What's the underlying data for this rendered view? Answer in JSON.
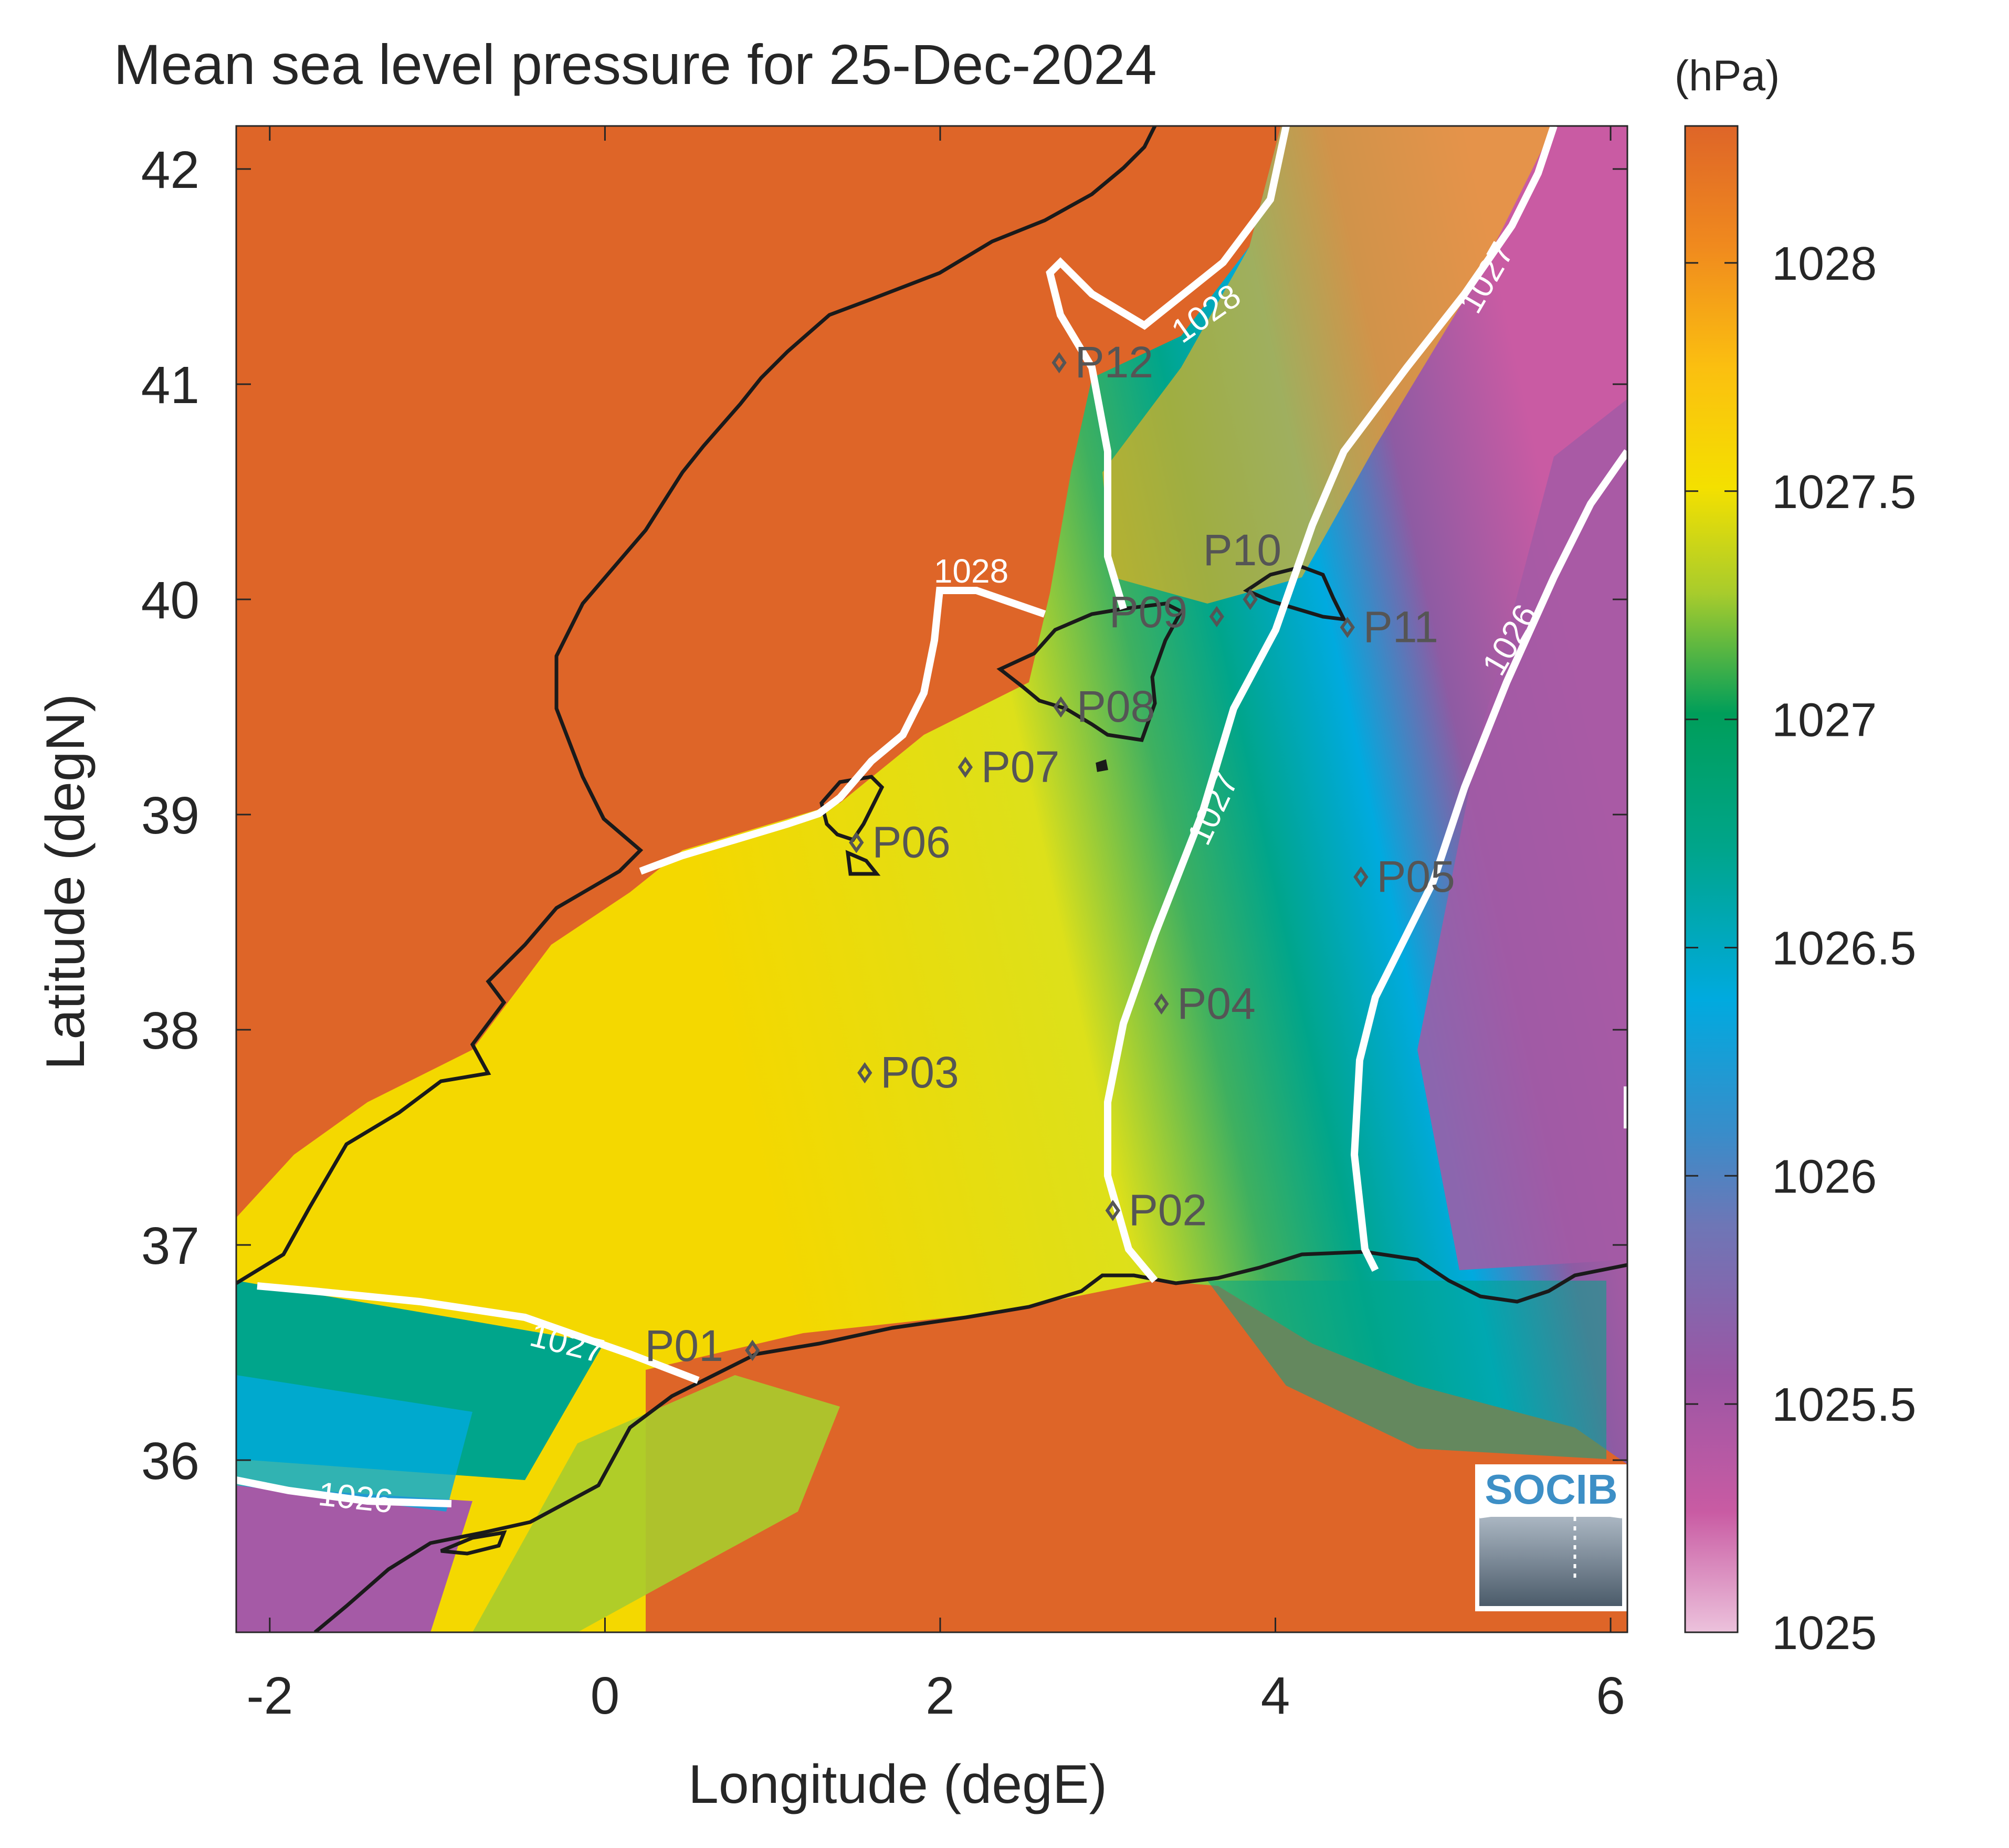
{
  "map": {
    "title": "Mean sea level pressure for 25-Dec-2024",
    "units_label": "(hPa)",
    "xlabel": "Longitude (degE)",
    "ylabel": "Latitude (degN)",
    "xlim": [
      -2.2,
      6.1
    ],
    "ylim": [
      35.2,
      42.2
    ],
    "x_ticks": [
      -2,
      0,
      2,
      4,
      6
    ],
    "x_tick_labels": [
      "-2",
      "0",
      "2",
      "4",
      "6"
    ],
    "y_ticks": [
      36,
      37,
      38,
      39,
      40,
      41,
      42
    ],
    "y_tick_labels": [
      "36",
      "37",
      "38",
      "39",
      "40",
      "41",
      "42"
    ],
    "colorbar": {
      "range": [
        1025,
        1028.3
      ],
      "ticks": [
        1025,
        1025.5,
        1026,
        1026.5,
        1027,
        1027.5,
        1028
      ],
      "tick_labels": [
        "1025",
        "1025.5",
        "1026",
        "1026.5",
        "1027",
        "1027.5",
        "1028"
      ],
      "colors": [
        "#ecc2dc",
        "#c95ba3",
        "#8e5ba3",
        "#3a8cc9",
        "#00aadf",
        "#00a58b",
        "#009e5a",
        "#a8cc2c",
        "#f4e000",
        "#fbbf10",
        "#f08a1e",
        "#de6528"
      ]
    },
    "contour_labels": [
      "1028",
      "1028",
      "1027",
      "1027",
      "1027",
      "1026",
      "1026"
    ],
    "stations": [
      {
        "name": "P01",
        "lon": 0.88,
        "lat": 36.51
      },
      {
        "name": "P02",
        "lon": 3.03,
        "lat": 37.16
      },
      {
        "name": "P03",
        "lon": 1.55,
        "lat": 37.8
      },
      {
        "name": "P04",
        "lon": 3.32,
        "lat": 38.12
      },
      {
        "name": "P05",
        "lon": 4.51,
        "lat": 38.71
      },
      {
        "name": "P06",
        "lon": 1.5,
        "lat": 38.87
      },
      {
        "name": "P07",
        "lon": 2.15,
        "lat": 39.22
      },
      {
        "name": "P08",
        "lon": 2.72,
        "lat": 39.5
      },
      {
        "name": "P09",
        "lon": 3.65,
        "lat": 39.92
      },
      {
        "name": "P10",
        "lon": 3.85,
        "lat": 40.0
      },
      {
        "name": "P11",
        "lon": 4.43,
        "lat": 39.87
      },
      {
        "name": "P12",
        "lon": 2.71,
        "lat": 41.1
      }
    ],
    "logo_text": "SOCIB",
    "colors": {
      "axis": "#262626",
      "contour": "#ffffff",
      "coast": "#1a1a1a",
      "station": "#555555",
      "land_high": "#de6528",
      "logo": "#3d8fc6"
    }
  }
}
